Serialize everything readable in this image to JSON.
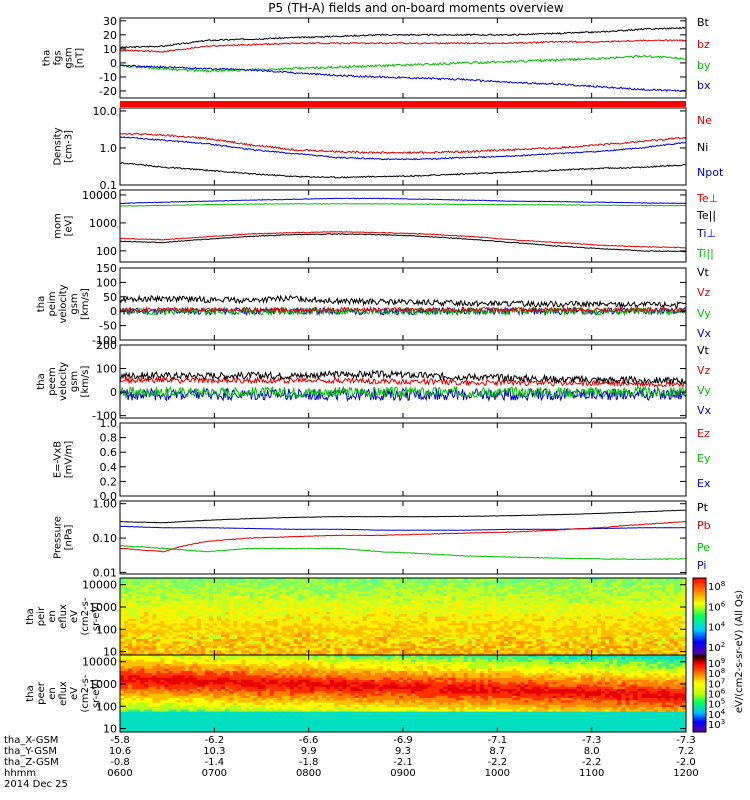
{
  "chart_data": {
    "type": "line",
    "title": "P5 (TH-A) fields and on-board moments overview",
    "colorbar_label": "eV/(cm2-s-sr-eV) (All Qs)",
    "ephemeris": {
      "rows": [
        {
          "label": "tha_X-GSM",
          "values": [
            "-5.8",
            "-6.2",
            "-6.6",
            "-6.9",
            "-7.1",
            "-7.3",
            "-7.3"
          ]
        },
        {
          "label": "tha_Y-GSM",
          "values": [
            "10.6",
            "10.3",
            "9.9",
            "9.3",
            "8.7",
            "8.0",
            "7.2"
          ]
        },
        {
          "label": "tha_Z-GSM",
          "values": [
            "-0.8",
            "-1.4",
            "-1.8",
            "-2.1",
            "-2.2",
            "-2.2",
            "-2.0"
          ]
        },
        {
          "label": "hhmm",
          "values": [
            "0600",
            "0700",
            "0800",
            "0900",
            "1000",
            "1100",
            "1200"
          ]
        }
      ],
      "date": "2014 Dec 25"
    },
    "panels": [
      {
        "ylabel": [
          "tha",
          "fgs",
          "gsm",
          "[nT]"
        ],
        "scale": "linear",
        "ylim": [
          -25,
          32
        ],
        "yticks": [
          30,
          20,
          10,
          0,
          -10,
          -20
        ],
        "ticklabels": [
          "30",
          "20",
          "10",
          "0",
          "-10",
          "-20"
        ],
        "legend": [
          {
            "name": "Bt",
            "color": "#000000"
          },
          {
            "name": "bz",
            "color": "#e00000"
          },
          {
            "name": "by",
            "color": "#00c000"
          },
          {
            "name": "bx",
            "color": "#0000d0"
          }
        ],
        "series": [
          {
            "name": "Bt",
            "color": "#000000",
            "noise": 0.5,
            "values": [
              11,
              12,
              16,
              17,
              18,
              19,
              20,
              20,
              20,
              20,
              21,
              22,
              24,
              25
            ]
          },
          {
            "name": "bz",
            "color": "#e00000",
            "noise": 0.5,
            "values": [
              9,
              8,
              12,
              13,
              14,
              14,
              14,
              14,
              14,
              14,
              15,
              15,
              16,
              16
            ]
          },
          {
            "name": "by",
            "color": "#00c000",
            "noise": 0.8,
            "values": [
              -2,
              -4,
              -6,
              -5,
              -4,
              -3,
              -2,
              -1,
              0,
              1,
              2,
              3,
              5,
              3
            ]
          },
          {
            "name": "bx",
            "color": "#0000d0",
            "noise": 0.6,
            "values": [
              -2,
              -3,
              -4,
              -5,
              -7,
              -9,
              -10,
              -11,
              -12,
              -14,
              -15,
              -17,
              -19,
              -20
            ]
          }
        ]
      },
      {
        "ylabel": [
          "Density",
          "[cm-3]"
        ],
        "scale": "log",
        "ylim": [
          0.1,
          12
        ],
        "yticks": [
          10,
          1,
          0.1
        ],
        "ticklabels": [
          "10.0",
          "1.0",
          "0.1"
        ],
        "legend": [
          {
            "name": "Ne",
            "color": "#e00000"
          },
          {
            "name": "Ni",
            "color": "#000000"
          },
          {
            "name": "Npot",
            "color": "#0000d0"
          }
        ],
        "series": [
          {
            "name": "Ne",
            "color": "#e00000",
            "noise": 0.06,
            "values": [
              2.5,
              2.2,
              1.8,
              1.2,
              0.9,
              0.8,
              0.75,
              0.75,
              0.8,
              0.9,
              1.0,
              1.2,
              1.5,
              1.9
            ]
          },
          {
            "name": "Npot",
            "color": "#0000d0",
            "noise": 0.04,
            "values": [
              2.0,
              1.6,
              1.3,
              0.9,
              0.7,
              0.55,
              0.5,
              0.5,
              0.55,
              0.6,
              0.7,
              0.8,
              1.0,
              1.4
            ]
          },
          {
            "name": "Ni",
            "color": "#000000",
            "noise": 0.04,
            "values": [
              0.4,
              0.3,
              0.25,
              0.2,
              0.17,
              0.16,
              0.17,
              0.18,
              0.2,
              0.22,
              0.25,
              0.28,
              0.3,
              0.35
            ]
          }
        ]
      },
      {
        "ylabel": [
          "mom",
          "[eV]"
        ],
        "scale": "log",
        "ylim": [
          40,
          15000
        ],
        "yticks": [
          10000,
          1000,
          100
        ],
        "ticklabels": [
          "10000",
          "1000",
          "100"
        ],
        "legend": [
          {
            "name": "Te⊥",
            "color": "#e00000"
          },
          {
            "name": "Te||",
            "color": "#000000"
          },
          {
            "name": "Ti⊥",
            "color": "#0000d0"
          },
          {
            "name": "Ti||",
            "color": "#00c000"
          }
        ],
        "series": [
          {
            "name": "Ti⊥",
            "color": "#0000d0",
            "noise": 0.02,
            "values": [
              5000,
              5500,
              6000,
              6500,
              7000,
              7500,
              7500,
              7000,
              6500,
              6000,
              5800,
              5500,
              5200,
              5000
            ]
          },
          {
            "name": "Ti||",
            "color": "#00c000",
            "noise": 0.02,
            "values": [
              4000,
              4200,
              4500,
              4700,
              4800,
              4800,
              4800,
              4700,
              4600,
              4500,
              4400,
              4300,
              4200,
              4100
            ]
          },
          {
            "name": "Te⊥",
            "color": "#e00000",
            "noise": 0.03,
            "values": [
              280,
              250,
              320,
              400,
              450,
              480,
              450,
              400,
              330,
              250,
              200,
              160,
              140,
              130
            ]
          },
          {
            "name": "Te||",
            "color": "#000000",
            "noise": 0.03,
            "values": [
              220,
              200,
              260,
              330,
              380,
              400,
              380,
              330,
              260,
              200,
              150,
              120,
              100,
              95
            ]
          }
        ]
      },
      {
        "ylabel": [
          "tha",
          "peim",
          "velocity",
          "gsm",
          "[km/s]"
        ],
        "scale": "linear",
        "ylim": [
          -100,
          150
        ],
        "yticks": [
          150,
          100,
          50,
          0,
          -50,
          -100
        ],
        "ticklabels": [
          "150",
          "100",
          "50",
          "0",
          "-50",
          "-100"
        ],
        "legend": [
          {
            "name": "Vt",
            "color": "#000000"
          },
          {
            "name": "Vz",
            "color": "#e00000"
          },
          {
            "name": "Vy",
            "color": "#00c000"
          },
          {
            "name": "Vx",
            "color": "#0000d0"
          }
        ],
        "series": [
          {
            "name": "Vx",
            "color": "#0000d0",
            "noise": 12,
            "values": [
              0,
              0,
              0,
              0,
              0,
              0,
              0,
              0,
              0,
              0,
              0,
              0,
              0,
              0
            ]
          },
          {
            "name": "Vy",
            "color": "#00c000",
            "noise": 12,
            "values": [
              0,
              0,
              0,
              0,
              0,
              0,
              0,
              0,
              0,
              0,
              0,
              0,
              0,
              0
            ]
          },
          {
            "name": "Vz",
            "color": "#e00000",
            "noise": 8,
            "values": [
              5,
              5,
              5,
              5,
              5,
              5,
              5,
              5,
              5,
              5,
              5,
              5,
              5,
              5
            ]
          },
          {
            "name": "Vt",
            "color": "#000000",
            "noise": 10,
            "values": [
              40,
              45,
              40,
              38,
              45,
              35,
              32,
              30,
              28,
              26,
              25,
              24,
              23,
              22
            ]
          }
        ]
      },
      {
        "ylabel": [
          "tha",
          "peem",
          "velocity",
          "gsm",
          "[km/s]"
        ],
        "scale": "linear",
        "ylim": [
          -110,
          200
        ],
        "yticks": [
          200,
          100,
          0,
          -100
        ],
        "ticklabels": [
          "200",
          "100",
          "0",
          "-100"
        ],
        "legend": [
          {
            "name": "Vt",
            "color": "#000000"
          },
          {
            "name": "Vz",
            "color": "#e00000"
          },
          {
            "name": "Vy",
            "color": "#00c000"
          },
          {
            "name": "Vx",
            "color": "#0000d0"
          }
        ],
        "series": [
          {
            "name": "Vx",
            "color": "#0000d0",
            "noise": 25,
            "values": [
              -10,
              -10,
              -10,
              -10,
              -10,
              -10,
              -10,
              -10,
              -10,
              -10,
              -10,
              -10,
              -10,
              -10
            ]
          },
          {
            "name": "Vy",
            "color": "#00c000",
            "noise": 22,
            "values": [
              0,
              0,
              0,
              0,
              0,
              0,
              0,
              0,
              0,
              0,
              0,
              0,
              0,
              0
            ]
          },
          {
            "name": "Vz",
            "color": "#e00000",
            "noise": 12,
            "values": [
              50,
              50,
              50,
              50,
              50,
              50,
              45,
              45,
              40,
              40,
              38,
              38,
              35,
              35
            ]
          },
          {
            "name": "Vt",
            "color": "#000000",
            "noise": 15,
            "values": [
              70,
              70,
              70,
              70,
              70,
              75,
              75,
              70,
              65,
              60,
              55,
              52,
              50,
              48
            ]
          }
        ]
      },
      {
        "ylabel": [
          "E=-VxB",
          "[mV/m]"
        ],
        "scale": "linear",
        "ylim": [
          0,
          1
        ],
        "yticks": [
          1.0,
          0.8,
          0.6,
          0.4,
          0.2,
          0.0
        ],
        "ticklabels": [
          "1.0",
          "0.8",
          "0.6",
          "0.4",
          "0.2",
          "0.0"
        ],
        "legend": [
          {
            "name": "Ez",
            "color": "#e00000"
          },
          {
            "name": "Ey",
            "color": "#00c000"
          },
          {
            "name": "Ex",
            "color": "#0000d0"
          }
        ],
        "series": []
      },
      {
        "ylabel": [
          "Pressure",
          "[nPa]"
        ],
        "scale": "log",
        "ylim": [
          0.009,
          1.2
        ],
        "yticks": [
          1,
          0.1,
          0.01
        ],
        "ticklabels": [
          "1.00",
          "0.10",
          "0.01"
        ],
        "legend": [
          {
            "name": "Pt",
            "color": "#000000"
          },
          {
            "name": "Pb",
            "color": "#e00000"
          },
          {
            "name": "Pe",
            "color": "#00c000"
          },
          {
            "name": "Pi",
            "color": "#0000d0"
          }
        ],
        "series": [
          {
            "name": "Pt",
            "color": "#000000",
            "noise": 0.01,
            "values": [
              0.3,
              0.28,
              0.33,
              0.37,
              0.4,
              0.42,
              0.42,
              0.42,
              0.43,
              0.45,
              0.48,
              0.52,
              0.58,
              0.65
            ]
          },
          {
            "name": "Pi",
            "color": "#0000d0",
            "noise": 0.01,
            "values": [
              0.22,
              0.2,
              0.2,
              0.19,
              0.18,
              0.18,
              0.17,
              0.17,
              0.17,
              0.18,
              0.18,
              0.19,
              0.2,
              0.2
            ]
          },
          {
            "name": "Pb",
            "color": "#e00000",
            "noise": 0.02,
            "values": [
              0.05,
              0.04,
              0.08,
              0.1,
              0.11,
              0.12,
              0.12,
              0.13,
              0.14,
              0.15,
              0.17,
              0.2,
              0.25,
              0.3
            ]
          },
          {
            "name": "Pe",
            "color": "#00c000",
            "noise": 0.02,
            "values": [
              0.06,
              0.05,
              0.04,
              0.05,
              0.05,
              0.05,
              0.04,
              0.035,
              0.03,
              0.028,
              0.026,
              0.025,
              0.024,
              0.025
            ]
          }
        ]
      },
      {
        "type": "heatmap",
        "ylabel": [
          "tha",
          "peir",
          "en",
          "eflux",
          "eV",
          "(cm2-s-",
          "sr-eV)"
        ],
        "scale": "log",
        "ylim": [
          7,
          20000
        ],
        "yticks": [
          10000,
          1000,
          100,
          10
        ],
        "ticklabels": [
          "10000",
          "1000",
          "100",
          "10"
        ],
        "cb_ticks": [
          "10",
          "10",
          "10",
          "10"
        ],
        "cb_exps": [
          "8",
          "6",
          "4",
          "2"
        ]
      },
      {
        "type": "heatmap",
        "ylabel": [
          "tha",
          "peer",
          "en",
          "eflux",
          "eV",
          "(cm2-s-",
          "sr-eV)"
        ],
        "scale": "log",
        "ylim": [
          7,
          20000
        ],
        "yticks": [
          10000,
          1000,
          100,
          10
        ],
        "ticklabels": [
          "10000",
          "1000",
          "100",
          "10"
        ],
        "cb_ticks": [
          "10",
          "10",
          "10",
          "10",
          "10",
          "10",
          "10"
        ],
        "cb_exps": [
          "9",
          "8",
          "7",
          "6",
          "5",
          "4",
          "3"
        ]
      }
    ]
  }
}
